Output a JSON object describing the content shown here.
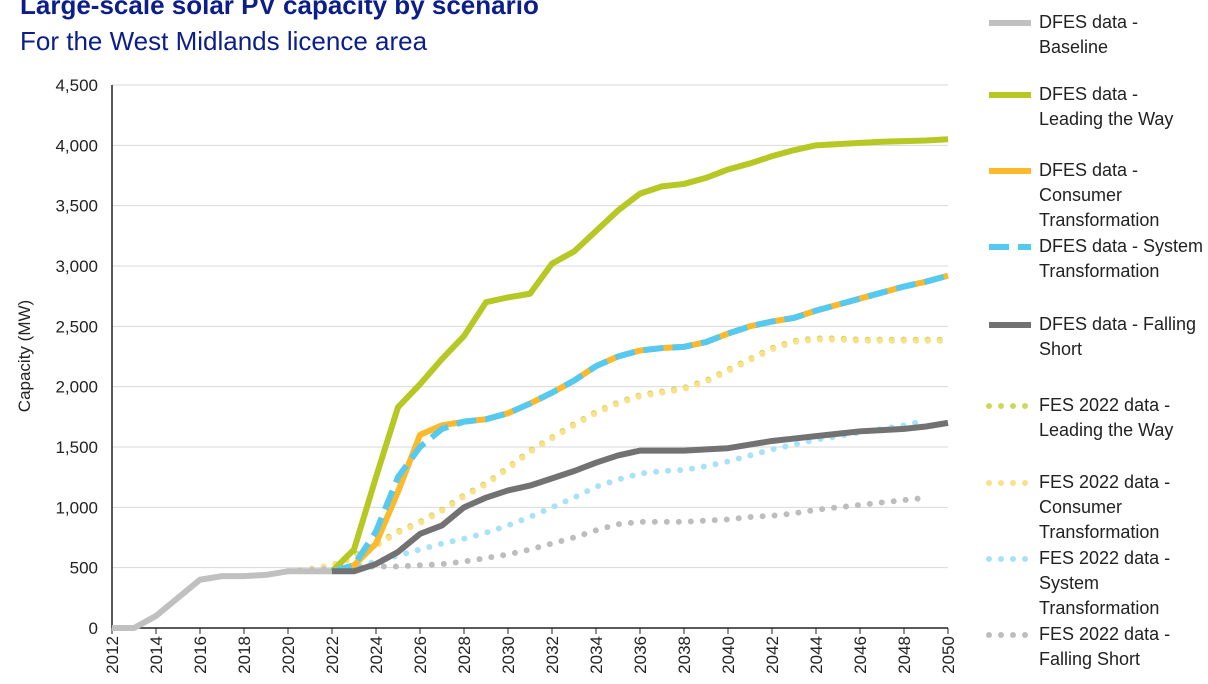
{
  "chart_data": {
    "type": "line",
    "title": "Large-scale solar PV capacity by scenario",
    "subtitle": "For the West Midlands licence area",
    "y_label": "Capacity (MW)",
    "x": [
      2012,
      2013,
      2014,
      2015,
      2016,
      2017,
      2018,
      2019,
      2020,
      2021,
      2022,
      2023,
      2024,
      2025,
      2026,
      2027,
      2028,
      2029,
      2030,
      2031,
      2032,
      2033,
      2034,
      2035,
      2036,
      2037,
      2038,
      2039,
      2040,
      2041,
      2042,
      2043,
      2044,
      2045,
      2046,
      2047,
      2048,
      2049,
      2050
    ],
    "xlim": [
      2012,
      2050
    ],
    "xticks": [
      2012,
      2014,
      2016,
      2018,
      2020,
      2022,
      2024,
      2026,
      2028,
      2030,
      2032,
      2034,
      2036,
      2038,
      2040,
      2042,
      2044,
      2046,
      2048,
      2050
    ],
    "ylim": [
      0,
      4500
    ],
    "yticks": [
      0,
      500,
      {
        "value": 1000,
        "label": "1,000"
      },
      {
        "value": 1500,
        "label": "1,500"
      },
      {
        "value": 2000,
        "label": "2,000"
      },
      {
        "value": 2500,
        "label": "2,500"
      },
      {
        "value": 3000,
        "label": "3,000"
      },
      {
        "value": 3500,
        "label": "3,500"
      },
      {
        "value": 4000,
        "label": "4,000"
      },
      {
        "value": 4500,
        "label": "4,500"
      }
    ],
    "grid": true,
    "series": [
      {
        "name": "DFES data - Baseline",
        "color": "#c0c0c0",
        "style": "solid",
        "values": [
          0,
          0,
          100,
          250,
          400,
          430,
          430,
          440,
          470,
          470,
          470,
          null,
          null,
          null,
          null,
          null,
          null,
          null,
          null,
          null,
          null,
          null,
          null,
          null,
          null,
          null,
          null,
          null,
          null,
          null,
          null,
          null,
          null,
          null,
          null,
          null,
          null,
          null,
          null
        ]
      },
      {
        "name": "DFES data - Leading the Way",
        "color": "#b5c824",
        "style": "solid",
        "values": [
          null,
          null,
          null,
          null,
          null,
          null,
          null,
          null,
          null,
          null,
          470,
          650,
          1250,
          1830,
          2020,
          2230,
          2420,
          2700,
          2740,
          2770,
          3020,
          3120,
          3290,
          3460,
          3600,
          3660,
          3680,
          3730,
          3800,
          3850,
          3910,
          3960,
          4000,
          4010,
          4020,
          4030,
          4035,
          4040,
          4050
        ]
      },
      {
        "name": "DFES data - Consumer Transformation",
        "color": "#fbb92b",
        "style": "solid",
        "values": [
          null,
          null,
          null,
          null,
          null,
          null,
          null,
          null,
          null,
          null,
          470,
          520,
          700,
          1130,
          1600,
          1680,
          1710,
          1730,
          1780,
          1860,
          1950,
          2050,
          2170,
          2250,
          2300,
          2320,
          2330,
          2370,
          2440,
          2500,
          2540,
          2570,
          2630,
          2680,
          2730,
          2780,
          2830,
          2870,
          2920
        ]
      },
      {
        "name": "DFES data - System Transformation",
        "color": "#55c9f0",
        "style": "dashed",
        "values": [
          null,
          null,
          null,
          null,
          null,
          null,
          null,
          null,
          null,
          null,
          470,
          520,
          800,
          1250,
          1500,
          1650,
          1710,
          1730,
          1780,
          1860,
          1950,
          2050,
          2170,
          2250,
          2300,
          2320,
          2330,
          2370,
          2440,
          2500,
          2540,
          2570,
          2630,
          2680,
          2730,
          2780,
          2830,
          2870,
          2920
        ]
      },
      {
        "name": "DFES data - Falling Short",
        "color": "#727272",
        "style": "solid",
        "values": [
          null,
          null,
          null,
          null,
          null,
          null,
          null,
          null,
          null,
          null,
          470,
          470,
          530,
          630,
          780,
          850,
          1000,
          1080,
          1140,
          1180,
          1240,
          1300,
          1370,
          1430,
          1470,
          1470,
          1470,
          1480,
          1490,
          1520,
          1550,
          1570,
          1590,
          1610,
          1630,
          1640,
          1650,
          1670,
          1700
        ]
      },
      {
        "name": "FES 2022 data - Leading the Way",
        "color": "#ccd85a",
        "style": "dotted",
        "values": [
          null,
          null,
          null,
          null,
          null,
          null,
          null,
          null,
          470,
          490,
          520,
          600,
          700,
          800,
          880,
          980,
          1100,
          1200,
          1330,
          1470,
          1580,
          1690,
          1790,
          1870,
          1930,
          1960,
          1990,
          2050,
          2140,
          2230,
          2320,
          2380,
          2400,
          2400,
          2390,
          2390,
          2390,
          2390,
          2390
        ]
      },
      {
        "name": "FES 2022 data - Consumer Transformation",
        "color": "#fbe08a",
        "style": "dotted",
        "values": [
          null,
          null,
          null,
          null,
          null,
          null,
          null,
          null,
          470,
          490,
          520,
          580,
          680,
          790,
          870,
          970,
          1090,
          1190,
          1320,
          1460,
          1570,
          1680,
          1780,
          1860,
          1920,
          1950,
          1980,
          2040,
          2130,
          2220,
          2310,
          2370,
          2390,
          2390,
          2380,
          2380,
          2380,
          2380,
          2380
        ]
      },
      {
        "name": "FES 2022 data - System Transformation",
        "color": "#a8e2f7",
        "style": "dotted",
        "values": [
          null,
          null,
          null,
          null,
          null,
          null,
          null,
          null,
          470,
          480,
          490,
          510,
          550,
          600,
          650,
          700,
          740,
          790,
          850,
          920,
          1000,
          1080,
          1170,
          1230,
          1280,
          1300,
          1310,
          1340,
          1380,
          1430,
          1480,
          1520,
          1560,
          1590,
          1620,
          1650,
          1680,
          1720,
          null
        ]
      },
      {
        "name": "FES 2022 data - Falling Short",
        "color": "#bdbdbd",
        "style": "dotted",
        "values": [
          null,
          null,
          null,
          null,
          null,
          null,
          null,
          null,
          470,
          480,
          490,
          500,
          510,
          510,
          520,
          530,
          550,
          580,
          610,
          650,
          700,
          750,
          810,
          860,
          880,
          880,
          880,
          890,
          900,
          920,
          930,
          950,
          980,
          1000,
          1020,
          1040,
          1060,
          1080,
          null
        ]
      }
    ]
  }
}
